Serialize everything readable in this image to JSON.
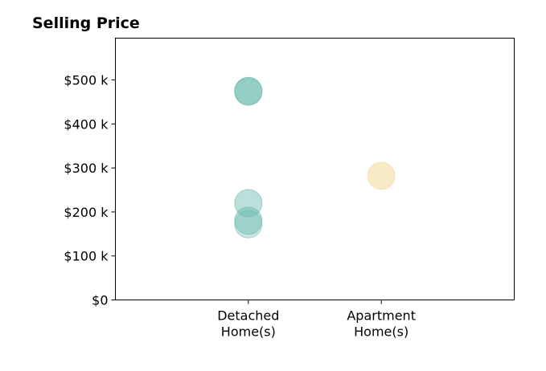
{
  "chart_data": {
    "type": "scatter",
    "title": "Selling Price",
    "xlabel": "",
    "ylabel": "",
    "categories": [
      [
        "Detached",
        "Home(s)"
      ],
      [
        "Apartment",
        "Home(s)"
      ]
    ],
    "xlim": [
      -1,
      2
    ],
    "ylim": [
      0,
      595000
    ],
    "y_ticks": [
      0,
      100000,
      200000,
      300000,
      400000,
      500000
    ],
    "y_tick_labels": [
      "$0",
      "$100 k",
      "$200 k",
      "$300 k",
      "$400 k",
      "$500 k"
    ],
    "grid": false,
    "series": [
      {
        "category": 0,
        "color": "#69b9ad",
        "points": [
          {
            "y": 475000,
            "alpha": 0.55
          },
          {
            "y": 473000,
            "alpha": 0.35
          },
          {
            "y": 220000,
            "alpha": 0.45
          },
          {
            "y": 180000,
            "alpha": 0.45
          },
          {
            "y": 172000,
            "alpha": 0.35
          }
        ]
      },
      {
        "category": 1,
        "color": "#f6e3b4",
        "points": [
          {
            "y": 282000,
            "alpha": 0.75
          }
        ]
      }
    ]
  }
}
